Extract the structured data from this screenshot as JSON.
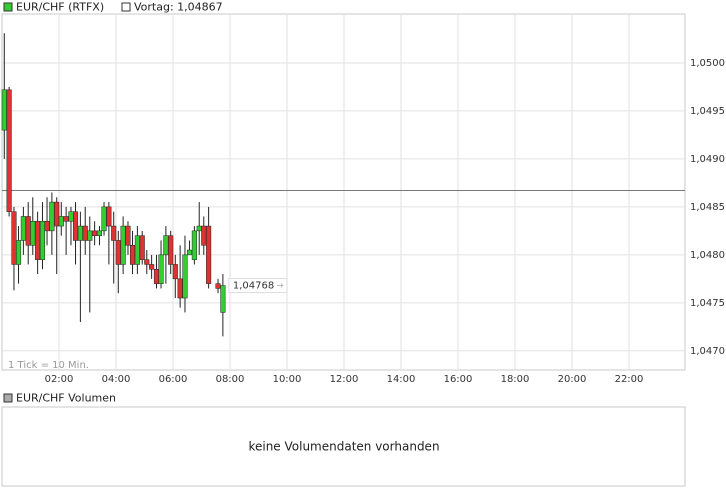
{
  "chart_data": {
    "type": "candlestick",
    "legend": {
      "name": "EUR/CHF (RTFX)",
      "color": "#33cc33"
    },
    "previous_close": {
      "value": 1.04867,
      "label": "Vortag: 1,04867"
    },
    "last_price": {
      "value": 1.04768,
      "label": "1,04768"
    },
    "annotation": "1 Tick = 10 Min.",
    "up_color": "#33cc33",
    "down_color": "#dd3333",
    "grid": true,
    "x": [
      0.08,
      0.25,
      0.42,
      0.58,
      0.75,
      0.92,
      1.08,
      1.25,
      1.42,
      1.58,
      1.75,
      1.92,
      2.08,
      2.25,
      2.42,
      2.58,
      2.75,
      2.92,
      3.08,
      3.25,
      3.42,
      3.58,
      3.75,
      3.92,
      4.08,
      4.25,
      4.42,
      4.58,
      4.75,
      4.92,
      5.08,
      5.25,
      5.42,
      5.58,
      5.75,
      5.92,
      6.08,
      6.25,
      6.42,
      6.58,
      6.75,
      6.92,
      7.08,
      7.25,
      7.58,
      7.75
    ],
    "open": [
      1.0493,
      1.04972,
      1.04845,
      1.0479,
      1.04815,
      1.0484,
      1.0481,
      1.04835,
      1.04795,
      1.04835,
      1.04825,
      1.04855,
      1.0483,
      1.0484,
      1.04835,
      1.04845,
      1.04815,
      1.0483,
      1.04815,
      1.04825,
      1.0482,
      1.04825,
      1.0485,
      1.0483,
      1.04815,
      1.0479,
      1.0483,
      1.0481,
      1.0479,
      1.0482,
      1.04795,
      1.0479,
      1.04785,
      1.0477,
      1.048,
      1.0482,
      1.0479,
      1.04775,
      1.04755,
      1.048,
      1.04795,
      1.04825,
      1.0483,
      1.0483,
      1.0477,
      1.0474
    ],
    "high": [
      1.05031,
      1.04975,
      1.0485,
      1.0483,
      1.0485,
      1.04855,
      1.0486,
      1.04845,
      1.04855,
      1.0486,
      1.04865,
      1.0486,
      1.04855,
      1.0485,
      1.0485,
      1.04855,
      1.04845,
      1.0485,
      1.0484,
      1.04835,
      1.0483,
      1.04855,
      1.04855,
      1.04845,
      1.04825,
      1.0484,
      1.04835,
      1.04825,
      1.0483,
      1.04825,
      1.04805,
      1.048,
      1.048,
      1.04815,
      1.0483,
      1.04825,
      1.048,
      1.0481,
      1.0482,
      1.04815,
      1.0483,
      1.04855,
      1.0484,
      1.0485,
      1.04775,
      1.0478
    ],
    "low": [
      1.049,
      1.0484,
      1.04763,
      1.0477,
      1.048,
      1.0479,
      1.048,
      1.0478,
      1.04785,
      1.0481,
      1.048,
      1.0478,
      1.0482,
      1.048,
      1.0481,
      1.0479,
      1.0473,
      1.048,
      1.0474,
      1.0481,
      1.0481,
      1.0482,
      1.0479,
      1.0477,
      1.0476,
      1.0478,
      1.048,
      1.0478,
      1.0478,
      1.0479,
      1.0478,
      1.04775,
      1.04765,
      1.04765,
      1.0477,
      1.0478,
      1.04755,
      1.04745,
      1.0474,
      1.048,
      1.0479,
      1.048,
      1.048,
      1.04765,
      1.0476,
      1.04715
    ],
    "close": [
      1.04972,
      1.04845,
      1.0479,
      1.04815,
      1.0484,
      1.0481,
      1.04835,
      1.04795,
      1.04835,
      1.04825,
      1.04855,
      1.0483,
      1.0484,
      1.04835,
      1.04845,
      1.04815,
      1.0483,
      1.04815,
      1.04825,
      1.0482,
      1.04825,
      1.0485,
      1.0483,
      1.04815,
      1.0479,
      1.0483,
      1.0481,
      1.0479,
      1.0482,
      1.04795,
      1.0479,
      1.04785,
      1.0477,
      1.048,
      1.0482,
      1.0479,
      1.04775,
      1.04755,
      1.048,
      1.04805,
      1.04825,
      1.0483,
      1.0481,
      1.0477,
      1.04765,
      1.04768
    ],
    "xlim": [
      0,
      24
    ],
    "xticks": [
      {
        "value": 2,
        "label": "02:00"
      },
      {
        "value": 4,
        "label": "04:00"
      },
      {
        "value": 6,
        "label": "06:00"
      },
      {
        "value": 8,
        "label": "08:00"
      },
      {
        "value": 10,
        "label": "10:00"
      },
      {
        "value": 12,
        "label": "12:00"
      },
      {
        "value": 14,
        "label": "14:00"
      },
      {
        "value": 16,
        "label": "16:00"
      },
      {
        "value": 18,
        "label": "18:00"
      },
      {
        "value": 20,
        "label": "20:00"
      },
      {
        "value": 22,
        "label": "22:00"
      }
    ],
    "ylim": [
      1.0468,
      1.05051
    ],
    "yticks": [
      {
        "value": 1.047,
        "label": "1,0470"
      },
      {
        "value": 1.0475,
        "label": "1,0475"
      },
      {
        "value": 1.048,
        "label": "1,0480"
      },
      {
        "value": 1.0485,
        "label": "1,0485"
      },
      {
        "value": 1.049,
        "label": "1,0490"
      },
      {
        "value": 1.0495,
        "label": "1,0495"
      },
      {
        "value": 1.05,
        "label": "1,0500"
      }
    ],
    "volume": {
      "legend": "EUR/CHF Volumen",
      "message": "keine Volumendaten vorhanden"
    }
  }
}
